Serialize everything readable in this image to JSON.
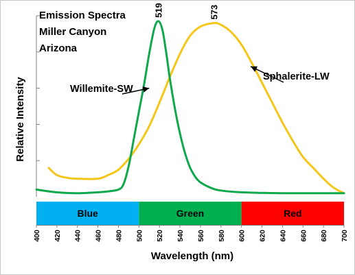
{
  "chart_data": {
    "type": "line",
    "title_lines": [
      "Emission Spectra",
      "Miller Canyon",
      "Arizona"
    ],
    "xlabel": "Wavelength (nm)",
    "ylabel": "Relative Intensity",
    "xlim": [
      400,
      700
    ],
    "ylim": [
      0,
      1
    ],
    "x_ticks": [
      400,
      420,
      440,
      460,
      480,
      500,
      520,
      540,
      560,
      580,
      600,
      620,
      640,
      660,
      680,
      700
    ],
    "grid": {
      "horizontal": false,
      "vertical": false
    },
    "legend": "none",
    "series": [
      {
        "name": "Willemite-SW",
        "color": "#0FA84B",
        "x": [
          400,
          420,
          440,
          460,
          470,
          480,
          485,
          490,
          495,
          500,
          505,
          510,
          515,
          519,
          523,
          527,
          530,
          535,
          540,
          545,
          550,
          555,
          560,
          570,
          580,
          600,
          640,
          700
        ],
        "y": [
          0.04,
          0.025,
          0.02,
          0.025,
          0.03,
          0.04,
          0.07,
          0.17,
          0.32,
          0.47,
          0.62,
          0.79,
          0.93,
          0.97,
          0.92,
          0.78,
          0.66,
          0.49,
          0.35,
          0.24,
          0.16,
          0.11,
          0.08,
          0.05,
          0.035,
          0.025,
          0.02,
          0.02
        ]
      },
      {
        "name": "Sphalerite-LW",
        "color": "#F5C518",
        "x": [
          412,
          420,
          430,
          440,
          460,
          470,
          480,
          490,
          500,
          510,
          520,
          530,
          540,
          550,
          560,
          573,
          580,
          590,
          600,
          610,
          620,
          630,
          640,
          650,
          660,
          670,
          680,
          690,
          700
        ],
        "y": [
          0.16,
          0.12,
          0.105,
          0.1,
          0.1,
          0.12,
          0.15,
          0.21,
          0.29,
          0.39,
          0.52,
          0.66,
          0.79,
          0.89,
          0.94,
          0.96,
          0.95,
          0.91,
          0.84,
          0.74,
          0.63,
          0.52,
          0.41,
          0.31,
          0.22,
          0.16,
          0.1,
          0.05,
          0.02
        ]
      }
    ],
    "annotations": [
      {
        "text": "519",
        "x": 519,
        "y": 0.97
      },
      {
        "text": "573",
        "x": 573,
        "y": 0.96
      },
      {
        "text": "Willemite-SW",
        "series": "Willemite-SW",
        "arrow_to": {
          "x": 510,
          "y": 0.6
        }
      },
      {
        "text": "Sphalerite-LW",
        "series": "Sphalerite-LW",
        "arrow_to": {
          "x": 609,
          "y": 0.72
        }
      }
    ],
    "color_bands": [
      {
        "label": "Blue",
        "x0": 400,
        "x1": 500,
        "color": "#00B0F0"
      },
      {
        "label": "Green",
        "x0": 500,
        "x1": 600,
        "color": "#00B050"
      },
      {
        "label": "Red",
        "x0": 600,
        "x1": 700,
        "color": "#FF0000"
      }
    ]
  }
}
